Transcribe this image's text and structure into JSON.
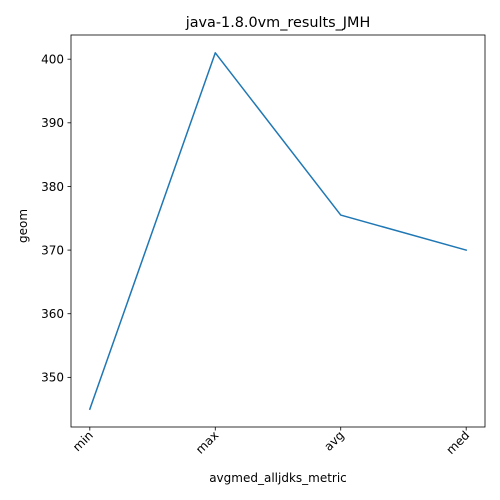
{
  "chart_data": {
    "type": "line",
    "title": "java-1.8.0vm_results_JMH",
    "xlabel": "avgmed_alljdks_metric",
    "ylabel": "geom",
    "categories": [
      "min",
      "max",
      "avg",
      "med"
    ],
    "series": [
      {
        "values": [
          345.0,
          401.0,
          375.5,
          370.0
        ],
        "color": "#1f77b4"
      }
    ],
    "ylim": [
      342.2,
      403.8
    ],
    "yticks": [
      350,
      360,
      370,
      380,
      390,
      400
    ],
    "grid": false,
    "legend": false
  }
}
